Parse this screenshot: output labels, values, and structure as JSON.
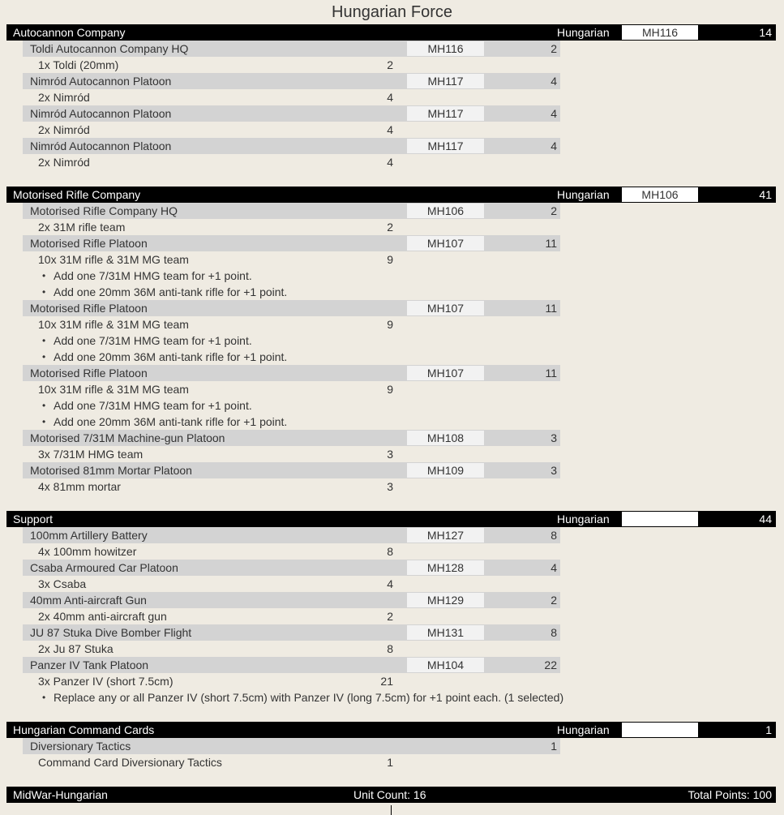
{
  "title": "Hungarian Force",
  "sections": [
    {
      "name": "Autocannon Company",
      "nation": "Hungarian",
      "code": "MH116",
      "points": "14",
      "units": [
        {
          "name": "Toldi Autocannon Company HQ",
          "code": "MH116",
          "points": "2",
          "item": "1x Toldi (20mm)",
          "item_points": "2",
          "options": []
        },
        {
          "name": "Nimród Autocannon Platoon",
          "code": "MH117",
          "points": "4",
          "item": "2x Nimród",
          "item_points": "4",
          "options": []
        },
        {
          "name": "Nimród Autocannon Platoon",
          "code": "MH117",
          "points": "4",
          "item": "2x Nimród",
          "item_points": "4",
          "options": []
        },
        {
          "name": "Nimród Autocannon Platoon",
          "code": "MH117",
          "points": "4",
          "item": "2x Nimród",
          "item_points": "4",
          "options": []
        }
      ]
    },
    {
      "name": "Motorised Rifle Company",
      "nation": "Hungarian",
      "code": "MH106",
      "points": "41",
      "units": [
        {
          "name": "Motorised Rifle Company HQ",
          "code": "MH106",
          "points": "2",
          "item": "2x 31M rifle team",
          "item_points": "2",
          "options": []
        },
        {
          "name": "Motorised Rifle Platoon",
          "code": "MH107",
          "points": "11",
          "item": "10x 31M rifle & 31M MG team",
          "item_points": "9",
          "options": [
            "Add one 7/31M HMG team for +1 point.",
            "Add one 20mm 36M anti-tank rifle for +1 point."
          ]
        },
        {
          "name": "Motorised Rifle Platoon",
          "code": "MH107",
          "points": "11",
          "item": "10x 31M rifle & 31M MG team",
          "item_points": "9",
          "options": [
            "Add one 7/31M HMG team for +1 point.",
            "Add one 20mm 36M anti-tank rifle for +1 point."
          ]
        },
        {
          "name": "Motorised Rifle Platoon",
          "code": "MH107",
          "points": "11",
          "item": "10x 31M rifle & 31M MG team",
          "item_points": "9",
          "options": [
            "Add one 7/31M HMG team for +1 point.",
            "Add one 20mm 36M anti-tank rifle for +1 point."
          ]
        },
        {
          "name": "Motorised 7/31M Machine-gun Platoon",
          "code": "MH108",
          "points": "3",
          "item": "3x 7/31M HMG team",
          "item_points": "3",
          "options": []
        },
        {
          "name": "Motorised 81mm Mortar Platoon",
          "code": "MH109",
          "points": "3",
          "item": "4x 81mm mortar",
          "item_points": "3",
          "options": []
        }
      ]
    },
    {
      "name": "Support",
      "nation": "Hungarian",
      "code": "",
      "points": "44",
      "units": [
        {
          "name": "100mm Artillery Battery",
          "code": "MH127",
          "points": "8",
          "item": "4x 100mm howitzer",
          "item_points": "8",
          "options": []
        },
        {
          "name": "Csaba Armoured Car Platoon",
          "code": "MH128",
          "points": "4",
          "item": "3x Csaba",
          "item_points": "4",
          "options": []
        },
        {
          "name": "40mm Anti-aircraft Gun",
          "code": "MH129",
          "points": "2",
          "item": "2x 40mm anti-aircraft gun",
          "item_points": "2",
          "options": []
        },
        {
          "name": "JU 87 Stuka Dive Bomber Flight",
          "code": "MH131",
          "points": "8",
          "item": "2x Ju 87 Stuka",
          "item_points": "8",
          "options": []
        },
        {
          "name": "Panzer IV Tank Platoon",
          "code": "MH104",
          "points": "22",
          "item": "3x Panzer IV (short 7.5cm)",
          "item_points": "21",
          "options": [
            "Replace any or all Panzer IV (short 7.5cm) with Panzer IV (long 7.5cm) for +1 point each.  (1 selected)"
          ]
        }
      ]
    },
    {
      "name": "Hungarian Command Cards",
      "nation": "Hungarian",
      "code": "",
      "points": "1",
      "units": [
        {
          "name": "Diversionary Tactics",
          "code": "",
          "points": "1",
          "item": "Command Card Diversionary Tactics",
          "item_points": "1",
          "options": []
        }
      ]
    }
  ],
  "footer": {
    "army": "MidWar-Hungarian",
    "unit_count": "Unit Count: 16",
    "total_points": "Total Points: 100"
  }
}
